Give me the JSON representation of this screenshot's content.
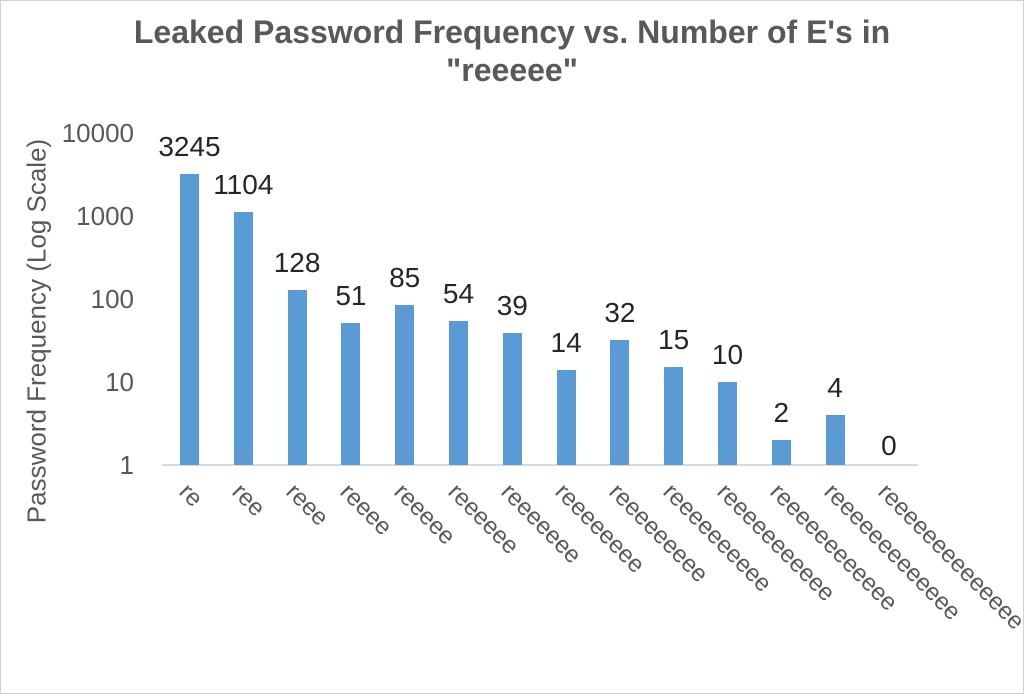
{
  "chart_data": {
    "type": "bar",
    "title": "Leaked Password Frequency vs. Number of E's in \"reeeee\"",
    "xlabel": "",
    "ylabel": "Password Frequency (Log Scale)",
    "yscale": "log",
    "ylim": [
      1,
      10000
    ],
    "yticks": [
      10000,
      1000,
      100,
      10,
      1
    ],
    "categories": [
      "re",
      "ree",
      "reee",
      "reeee",
      "reeeee",
      "reeeeee",
      "reeeeeee",
      "reeeeeeee",
      "reeeeeeeee",
      "reeeeeeeeee",
      "reeeeeeeeeee",
      "reeeeeeeeeeee",
      "reeeeeeeeeeeee",
      "reeeeeeeeeeeeee"
    ],
    "values": [
      3245,
      1104,
      128,
      51,
      85,
      54,
      39,
      14,
      32,
      15,
      10,
      2,
      4,
      0
    ],
    "data_labels": [
      3245,
      1104,
      128,
      51,
      85,
      54,
      39,
      14,
      32,
      15,
      10,
      2,
      4,
      0
    ],
    "bar_color": "#5B9BD5",
    "text_color": "#595959",
    "data_label_color": "#262626",
    "axis_line_color": "#D9D9D9",
    "grid": false,
    "legend": false
  }
}
